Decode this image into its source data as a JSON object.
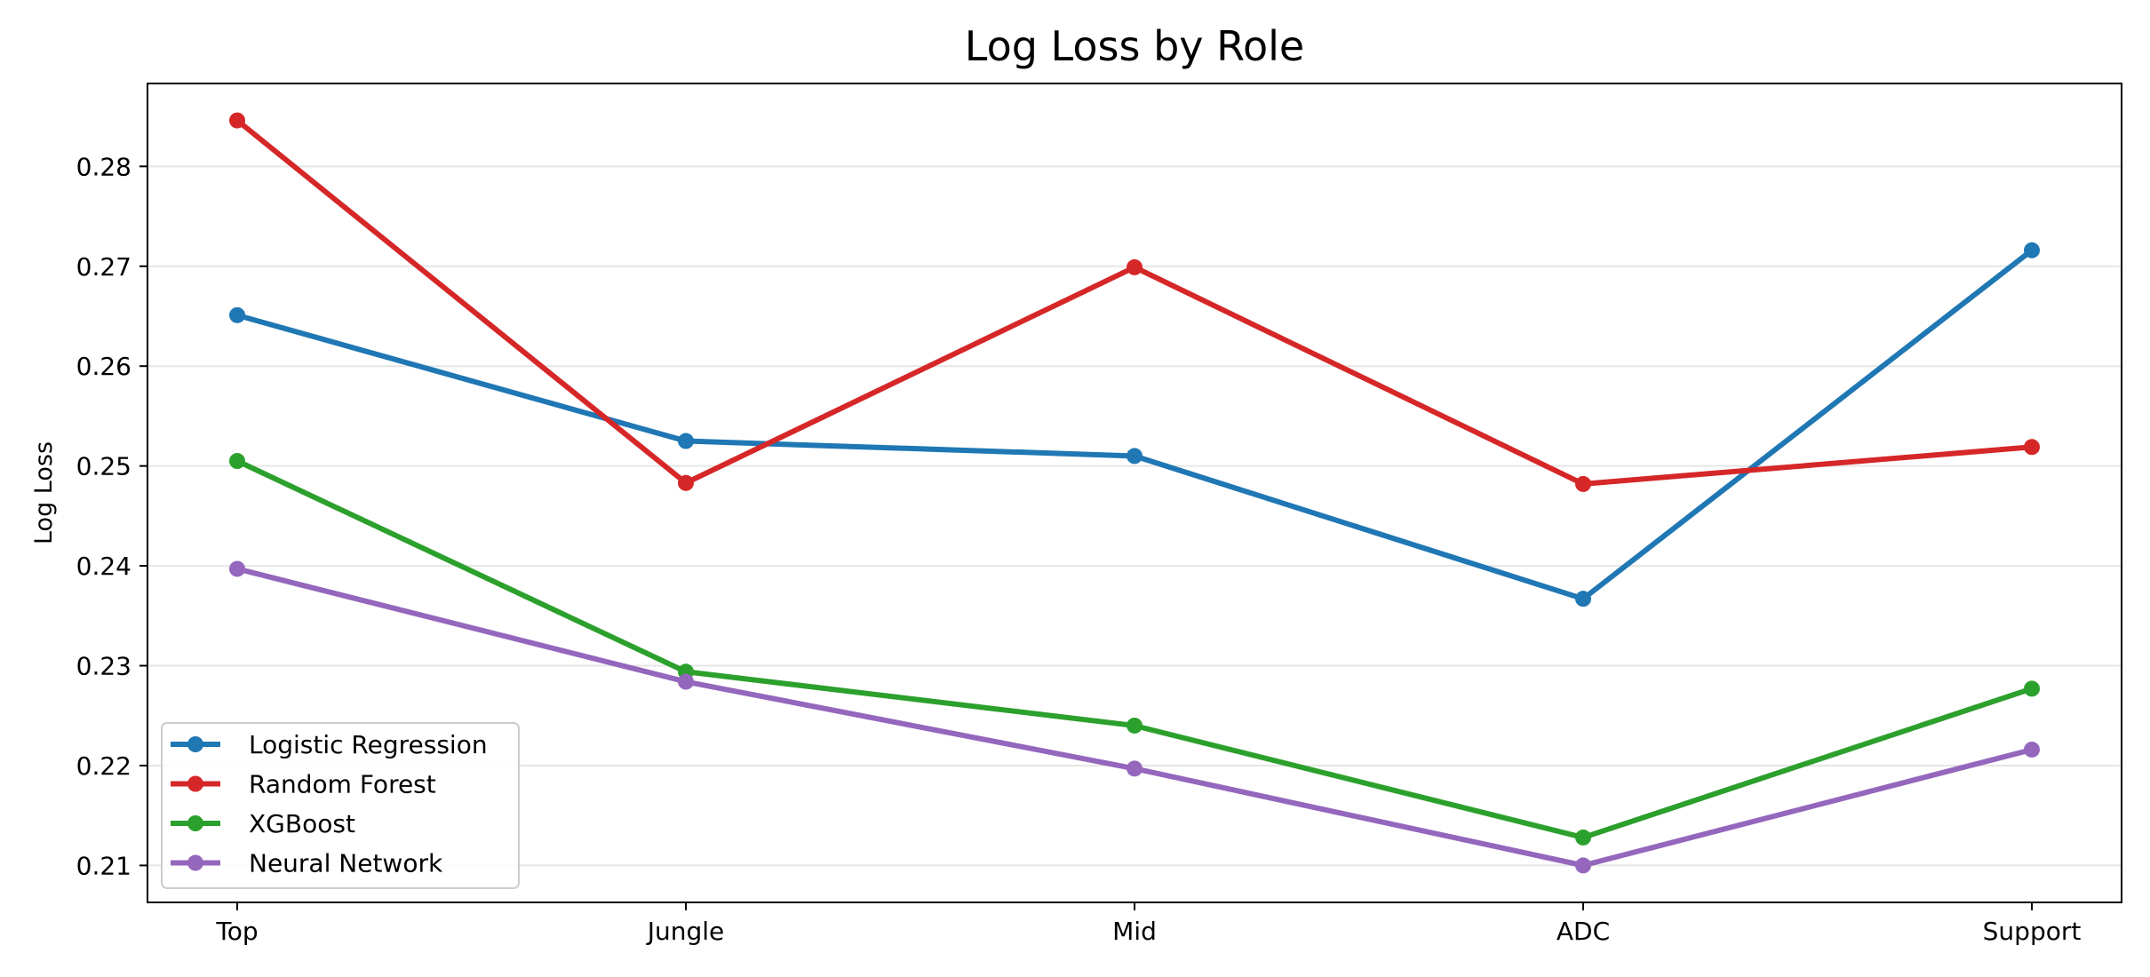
{
  "chart_data": {
    "type": "line",
    "title": "Log Loss by Role",
    "xlabel": "",
    "ylabel": "Log Loss",
    "categories": [
      "Top",
      "Jungle",
      "Mid",
      "ADC",
      "Support"
    ],
    "ylim": [
      0.2063,
      0.2883
    ],
    "yticks": [
      0.21,
      0.22,
      0.23,
      0.24,
      0.25,
      0.26,
      0.27,
      0.28
    ],
    "ytick_labels": [
      "0.21",
      "0.22",
      "0.23",
      "0.24",
      "0.25",
      "0.26",
      "0.27",
      "0.28"
    ],
    "grid": "horizontal",
    "legend_position": "lower-left",
    "series": [
      {
        "name": "Logistic Regression",
        "color": "#1f77b4",
        "values": [
          0.2651,
          0.2525,
          0.251,
          0.2367,
          0.2716
        ]
      },
      {
        "name": "Random Forest",
        "color": "#d62728",
        "values": [
          0.2846,
          0.2483,
          0.2699,
          0.2482,
          0.2519
        ]
      },
      {
        "name": "XGBoost",
        "color": "#2ca02c",
        "values": [
          0.2505,
          0.2294,
          0.224,
          0.2128,
          0.2277
        ]
      },
      {
        "name": "Neural Network",
        "color": "#9467bd",
        "values": [
          0.2397,
          0.2284,
          0.2197,
          0.21,
          0.2216
        ]
      }
    ]
  }
}
